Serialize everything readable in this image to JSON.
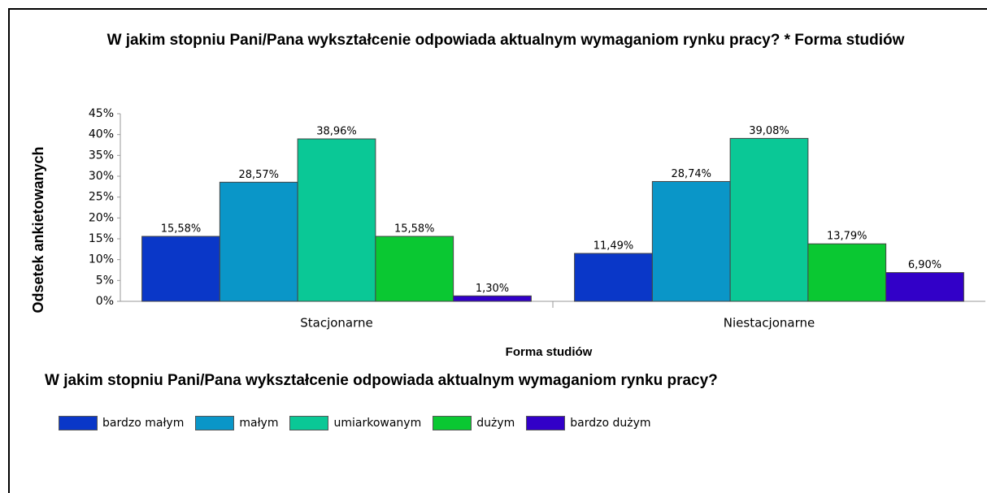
{
  "chart_data": {
    "type": "bar",
    "title": "W jakim stopniu Pani/Pana wykształcenie odpowiada aktualnym wymaganiom rynku pracy? * Forma studiów",
    "x_label": "Forma studiów",
    "y_label": "Odsetek ankietowanych",
    "legend_title": "W jakim stopniu Pani/Pana wykształcenie odpowiada aktualnym wymaganiom rynku pracy?",
    "categories": [
      "Stacjonarne",
      "Niestacjonarne"
    ],
    "series": [
      {
        "name": "bardzo małym",
        "color": "#0a37c8",
        "values": [
          15.58,
          11.49
        ],
        "value_labels": [
          "15,58%",
          "11,49%"
        ]
      },
      {
        "name": "małym",
        "color": "#0a96c8",
        "values": [
          28.57,
          28.74
        ],
        "value_labels": [
          "28,57%",
          "28,74%"
        ]
      },
      {
        "name": "umiarkowanym",
        "color": "#0ac896",
        "values": [
          38.96,
          39.08
        ],
        "value_labels": [
          "38,96%",
          "39,08%"
        ]
      },
      {
        "name": "dużym",
        "color": "#0ac832",
        "values": [
          15.58,
          13.79
        ],
        "value_labels": [
          "15,58%",
          "13,79%"
        ]
      },
      {
        "name": "bardzo dużym",
        "color": "#3200c8",
        "values": [
          1.3,
          6.9
        ],
        "value_labels": [
          "1,30%",
          "6,90%"
        ]
      }
    ],
    "ylim": [
      0,
      45
    ],
    "yticks": [
      {
        "value": 0,
        "label": "0%"
      },
      {
        "value": 5,
        "label": "5%"
      },
      {
        "value": 10,
        "label": "10%"
      },
      {
        "value": 15,
        "label": "15%"
      },
      {
        "value": 20,
        "label": "20%"
      },
      {
        "value": 25,
        "label": "25%"
      },
      {
        "value": 30,
        "label": "30%"
      },
      {
        "value": 35,
        "label": "35%"
      },
      {
        "value": 40,
        "label": "40%"
      },
      {
        "value": 45,
        "label": "45%"
      }
    ],
    "grid": false
  }
}
